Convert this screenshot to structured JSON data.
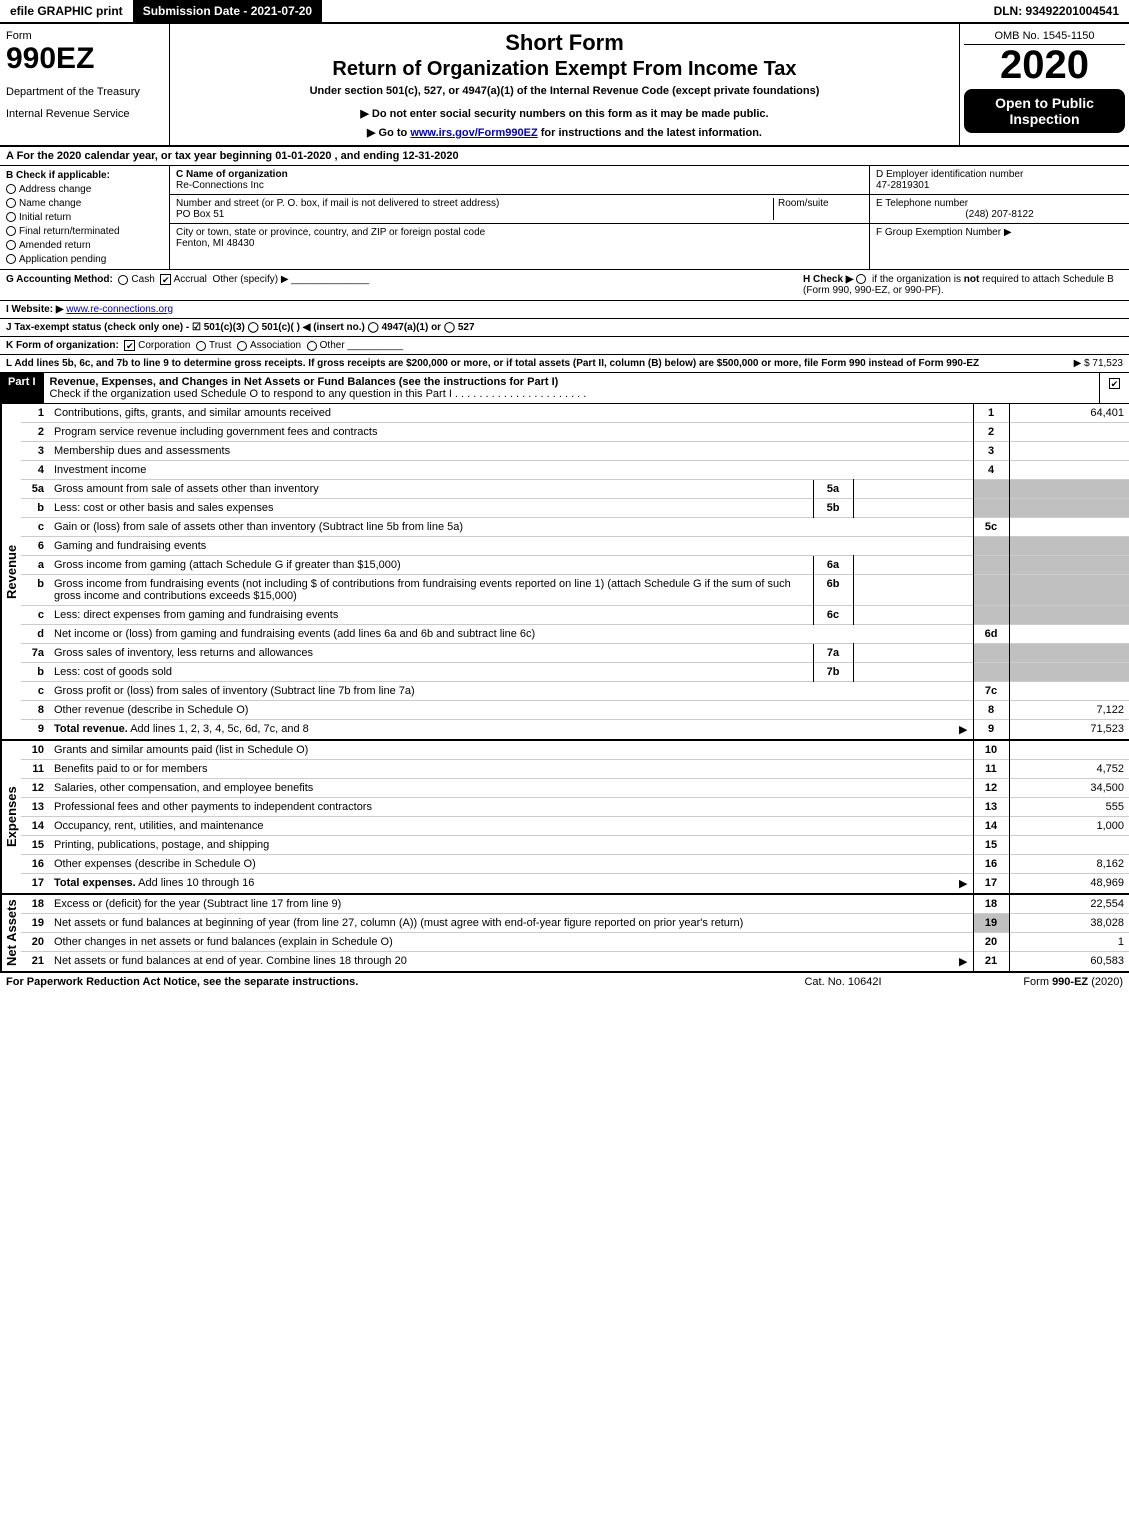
{
  "topbar": {
    "efile": "efile GRAPHIC print",
    "submission": "Submission Date - 2021-07-20",
    "dln": "DLN: 93492201004541"
  },
  "header": {
    "form_word": "Form",
    "form_num": "990EZ",
    "dept1": "Department of the Treasury",
    "dept2": "Internal Revenue Service",
    "short_form": "Short Form",
    "title": "Return of Organization Exempt From Income Tax",
    "subtitle": "Under section 501(c), 527, or 4947(a)(1) of the Internal Revenue Code (except private foundations)",
    "notice": "▶ Do not enter social security numbers on this form as it may be made public.",
    "goto_pre": "▶ Go to ",
    "goto_link": "www.irs.gov/Form990EZ",
    "goto_post": " for instructions and the latest information.",
    "omb": "OMB No. 1545-1150",
    "year": "2020",
    "open": "Open to Public Inspection"
  },
  "line_a": "A For the 2020 calendar year, or tax year beginning 01-01-2020 , and ending 12-31-2020",
  "col_b": {
    "hdr": "B Check if applicable:",
    "opts": [
      "Address change",
      "Name change",
      "Initial return",
      "Final return/terminated",
      "Amended return",
      "Application pending"
    ]
  },
  "col_c": {
    "c_label": "C Name of organization",
    "c_name": "Re-Connections Inc",
    "addr_label": "Number and street (or P. O. box, if mail is not delivered to street address)",
    "room_label": "Room/suite",
    "addr": "PO Box 51",
    "city_label": "City or town, state or province, country, and ZIP or foreign postal code",
    "city": "Fenton, MI  48430"
  },
  "col_de": {
    "d_label": "D Employer identification number",
    "d_val": "47-2819301",
    "e_label": "E Telephone number",
    "e_val": "(248) 207-8122",
    "f_label": "F Group Exemption Number ▶"
  },
  "gh": {
    "g": "G Accounting Method:",
    "g_cash": "Cash",
    "g_accrual": "Accrual",
    "g_other": "Other (specify) ▶",
    "h": "H  Check ▶",
    "h_text1": "if the organization is ",
    "h_not": "not",
    "h_text2": " required to attach Schedule B (Form 990, 990-EZ, or 990-PF)."
  },
  "line_i": {
    "label": "I Website: ▶",
    "val": "www.re-connections.org"
  },
  "line_j": "J Tax-exempt status (check only one) - ☑ 501(c)(3)  ◯ 501(c)(  ) ◀ (insert no.)  ◯ 4947(a)(1) or  ◯ 527",
  "line_k": {
    "label": "K Form of organization:",
    "opts": [
      "Corporation",
      "Trust",
      "Association",
      "Other"
    ],
    "checked": 0
  },
  "line_l": {
    "text": "L Add lines 5b, 6c, and 7b to line 9 to determine gross receipts. If gross receipts are $200,000 or more, or if total assets (Part II, column (B) below) are $500,000 or more, file Form 990 instead of Form 990-EZ",
    "val": "▶ $ 71,523"
  },
  "part1": {
    "tag": "Part I",
    "title": "Revenue, Expenses, and Changes in Net Assets or Fund Balances (see the instructions for Part I)",
    "check_text": "Check if the organization used Schedule O to respond to any question in this Part I"
  },
  "revenue": {
    "vtab": "Revenue",
    "rows": [
      {
        "n": "1",
        "desc": "Contributions, gifts, grants, and similar amounts received",
        "rn": "1",
        "rv": "64,401"
      },
      {
        "n": "2",
        "desc": "Program service revenue including government fees and contracts",
        "rn": "2",
        "rv": ""
      },
      {
        "n": "3",
        "desc": "Membership dues and assessments",
        "rn": "3",
        "rv": ""
      },
      {
        "n": "4",
        "desc": "Investment income",
        "rn": "4",
        "rv": ""
      },
      {
        "n": "5a",
        "desc": "Gross amount from sale of assets other than inventory",
        "mb": "5a",
        "mv": "",
        "shaded": true
      },
      {
        "n": "b",
        "desc": "Less: cost or other basis and sales expenses",
        "mb": "5b",
        "mv": "",
        "shaded": true
      },
      {
        "n": "c",
        "desc": "Gain or (loss) from sale of assets other than inventory (Subtract line 5b from line 5a)",
        "rn": "5c",
        "rv": ""
      },
      {
        "n": "6",
        "desc": "Gaming and fundraising events",
        "shaded": true,
        "noboxes": true
      },
      {
        "n": "a",
        "desc": "Gross income from gaming (attach Schedule G if greater than $15,000)",
        "mb": "6a",
        "mv": "",
        "shaded": true
      },
      {
        "n": "b",
        "desc": "Gross income from fundraising events (not including $                       of contributions from fundraising events reported on line 1) (attach Schedule G if the sum of such gross income and contributions exceeds $15,000)",
        "mb": "6b",
        "mv": "",
        "shaded": true
      },
      {
        "n": "c",
        "desc": "Less: direct expenses from gaming and fundraising events",
        "mb": "6c",
        "mv": "",
        "shaded": true
      },
      {
        "n": "d",
        "desc": "Net income or (loss) from gaming and fundraising events (add lines 6a and 6b and subtract line 6c)",
        "rn": "6d",
        "rv": ""
      },
      {
        "n": "7a",
        "desc": "Gross sales of inventory, less returns and allowances",
        "mb": "7a",
        "mv": "",
        "shaded": true
      },
      {
        "n": "b",
        "desc": "Less: cost of goods sold",
        "mb": "7b",
        "mv": "",
        "shaded": true
      },
      {
        "n": "c",
        "desc": "Gross profit or (loss) from sales of inventory (Subtract line 7b from line 7a)",
        "rn": "7c",
        "rv": ""
      },
      {
        "n": "8",
        "desc": "Other revenue (describe in Schedule O)",
        "rn": "8",
        "rv": "7,122"
      },
      {
        "n": "9",
        "desc": "Total revenue. Add lines 1, 2, 3, 4, 5c, 6d, 7c, and 8",
        "rn": "9",
        "rv": "71,523",
        "bold": true,
        "arrow": true
      }
    ]
  },
  "expenses": {
    "vtab": "Expenses",
    "rows": [
      {
        "n": "10",
        "desc": "Grants and similar amounts paid (list in Schedule O)",
        "rn": "10",
        "rv": ""
      },
      {
        "n": "11",
        "desc": "Benefits paid to or for members",
        "rn": "11",
        "rv": "4,752"
      },
      {
        "n": "12",
        "desc": "Salaries, other compensation, and employee benefits",
        "rn": "12",
        "rv": "34,500"
      },
      {
        "n": "13",
        "desc": "Professional fees and other payments to independent contractors",
        "rn": "13",
        "rv": "555"
      },
      {
        "n": "14",
        "desc": "Occupancy, rent, utilities, and maintenance",
        "rn": "14",
        "rv": "1,000"
      },
      {
        "n": "15",
        "desc": "Printing, publications, postage, and shipping",
        "rn": "15",
        "rv": ""
      },
      {
        "n": "16",
        "desc": "Other expenses (describe in Schedule O)",
        "rn": "16",
        "rv": "8,162"
      },
      {
        "n": "17",
        "desc": "Total expenses. Add lines 10 through 16",
        "rn": "17",
        "rv": "48,969",
        "bold": true,
        "arrow": true
      }
    ]
  },
  "netassets": {
    "vtab": "Net Assets",
    "rows": [
      {
        "n": "18",
        "desc": "Excess or (deficit) for the year (Subtract line 17 from line 9)",
        "rn": "18",
        "rv": "22,554"
      },
      {
        "n": "19",
        "desc": "Net assets or fund balances at beginning of year (from line 27, column (A)) (must agree with end-of-year figure reported on prior year's return)",
        "rn": "19",
        "rv": "38,028",
        "shaded_right_first": true
      },
      {
        "n": "20",
        "desc": "Other changes in net assets or fund balances (explain in Schedule O)",
        "rn": "20",
        "rv": "1"
      },
      {
        "n": "21",
        "desc": "Net assets or fund balances at end of year. Combine lines 18 through 20",
        "rn": "21",
        "rv": "60,583",
        "arrow": true
      }
    ]
  },
  "footer": {
    "left": "For Paperwork Reduction Act Notice, see the separate instructions.",
    "mid": "Cat. No. 10642I",
    "right": "Form 990-EZ (2020)"
  }
}
